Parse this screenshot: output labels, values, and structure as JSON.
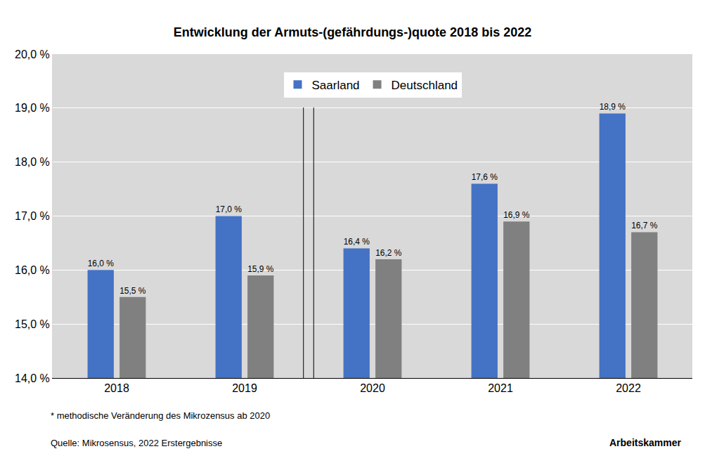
{
  "chart_data": {
    "type": "bar",
    "title": "Entwicklung der Armuts-(gefährdungs-)quote 2018 bis 2022",
    "categories": [
      "2018",
      "2019",
      "2020",
      "2021",
      "2022"
    ],
    "series": [
      {
        "name": "Saarland",
        "color": "#4472c4",
        "values": [
          16.0,
          17.0,
          16.4,
          17.6,
          18.9
        ],
        "value_labels": [
          "16,0 %",
          "17,0 %",
          "16,4 %",
          "17,6 %",
          "18,9 %"
        ]
      },
      {
        "name": "Deutschland",
        "color": "#808080",
        "values": [
          15.5,
          15.9,
          16.2,
          16.9,
          16.7
        ],
        "value_labels": [
          "15,5 %",
          "15,9 %",
          "16,2 %",
          "16,9 %",
          "16,7 %"
        ]
      }
    ],
    "ylim": [
      14,
      20
    ],
    "yticks": [
      {
        "value": 14,
        "label": "14,0 %"
      },
      {
        "value": 15,
        "label": "15,0 %"
      },
      {
        "value": 16,
        "label": "16,0 %"
      },
      {
        "value": 17,
        "label": "17,0 %"
      },
      {
        "value": 18,
        "label": "18,0 %"
      },
      {
        "value": 19,
        "label": "19,0 %"
      },
      {
        "value": 20,
        "label": "20,0 %"
      }
    ],
    "grid": true,
    "legend": "top",
    "data_labels": true,
    "annotations": [
      "* methodische Veränderung des Mikrozensus ab 2020",
      "Quelle: Mikrosensus, 2022 Erstergebnisse",
      "Arbeitskammer"
    ]
  }
}
